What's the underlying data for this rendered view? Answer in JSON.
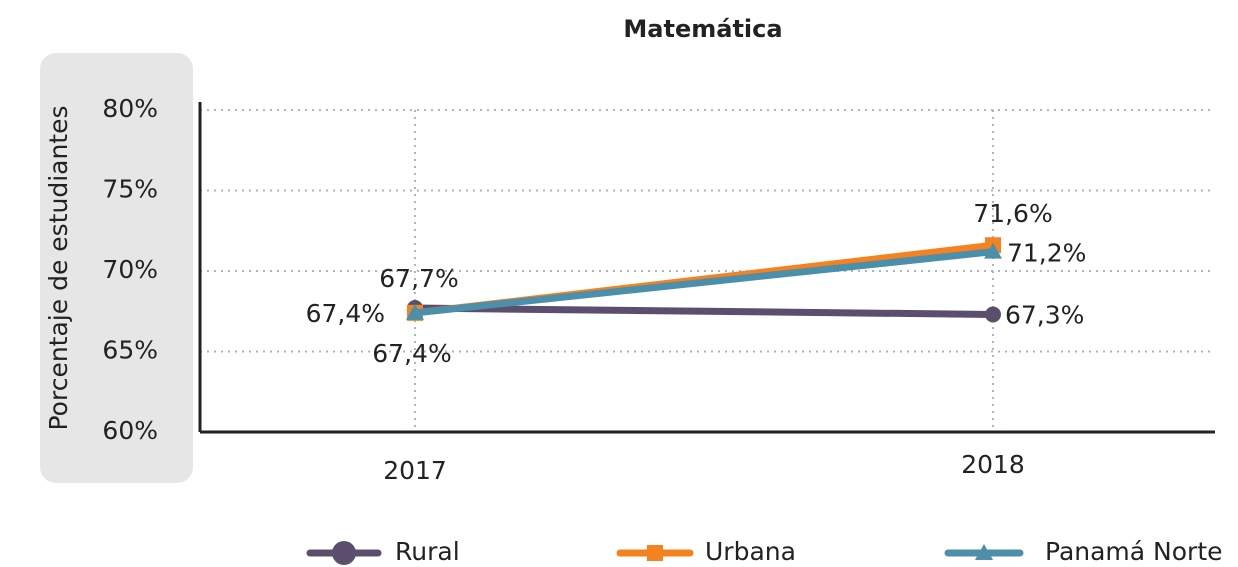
{
  "chart_data": {
    "type": "line",
    "title": "Matemática",
    "ylabel": "Porcentaje de estudiantes",
    "categories": [
      "2017",
      "2018"
    ],
    "series": [
      {
        "name": "Rural",
        "color": "#5c4f6e",
        "marker": "circle",
        "values": [
          67.7,
          67.3
        ],
        "value_labels": [
          "67,7%",
          "67,3%"
        ]
      },
      {
        "name": "Urbana",
        "color": "#f5821f",
        "marker": "square",
        "values": [
          67.4,
          71.6
        ],
        "value_labels": [
          "67,4%",
          "71,6%"
        ]
      },
      {
        "name": "Panamá Norte",
        "color": "#4b8fab",
        "marker": "triangle",
        "values": [
          67.4,
          71.2
        ],
        "value_labels": [
          "67,4%",
          "71,2%"
        ]
      }
    ],
    "ylim": [
      60,
      80
    ],
    "yticks": [
      {
        "value": 60,
        "label": "60%"
      },
      {
        "value": 65,
        "label": "65%"
      },
      {
        "value": 70,
        "label": "70%"
      },
      {
        "value": 75,
        "label": "75%"
      },
      {
        "value": 80,
        "label": "80%"
      }
    ],
    "grid": true,
    "legend": "bottom"
  }
}
